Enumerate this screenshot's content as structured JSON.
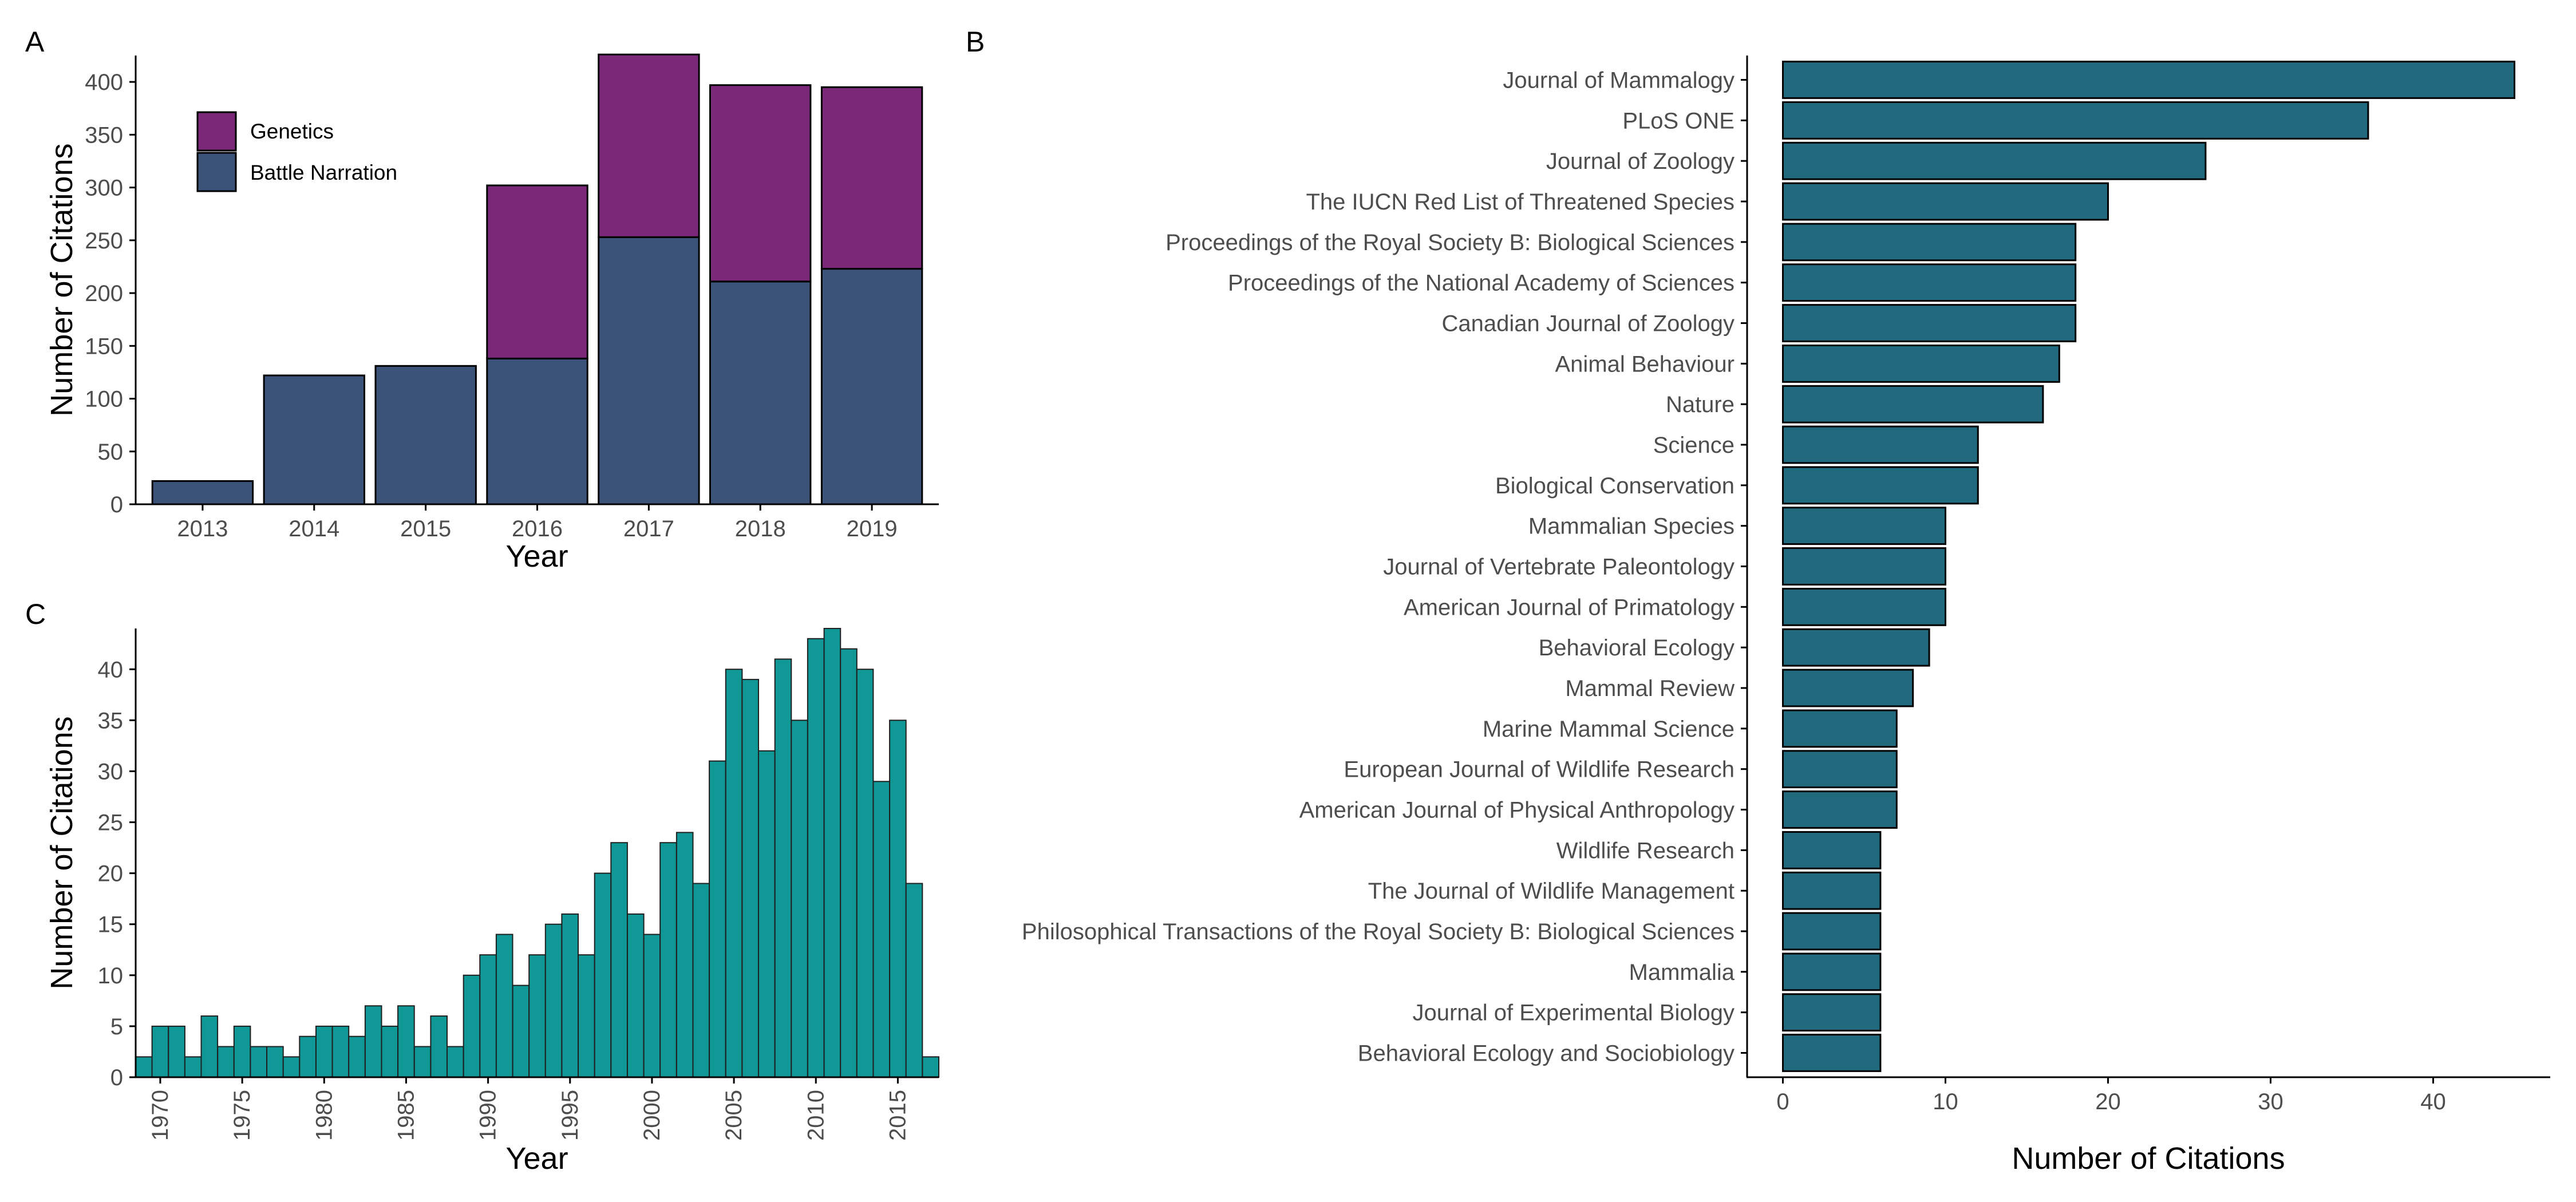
{
  "panels": {
    "a": "A",
    "b": "B",
    "c": "C"
  },
  "colors": {
    "genetics": "#7a2878",
    "battle_narration": "#3b5378",
    "histogram": "#0f9896",
    "journals": "#21697d",
    "outline": "#000000",
    "tick_text": "#4d4d4d"
  },
  "chart_data": [
    {
      "panel": "A",
      "type": "bar",
      "stacked": true,
      "categories": [
        "2013",
        "2014",
        "2015",
        "2016",
        "2017",
        "2018",
        "2019"
      ],
      "series": [
        {
          "name": "Battle Narration",
          "values": [
            22,
            122,
            131,
            138,
            253,
            211,
            223
          ]
        },
        {
          "name": "Genetics",
          "values": [
            0,
            0,
            0,
            164,
            173,
            186,
            172
          ]
        }
      ],
      "xlabel": "Year",
      "ylabel": "Number of Citations",
      "ylim": [
        0,
        425
      ],
      "yticks": [
        0,
        50,
        100,
        150,
        200,
        250,
        300,
        350,
        400
      ],
      "legend": "top-left",
      "grid": false
    },
    {
      "panel": "C",
      "type": "bar",
      "subtype": "histogram",
      "x": [
        1969,
        1970,
        1971,
        1972,
        1973,
        1974,
        1975,
        1976,
        1977,
        1978,
        1979,
        1980,
        1981,
        1982,
        1983,
        1984,
        1985,
        1986,
        1987,
        1988,
        1989,
        1990,
        1991,
        1992,
        1993,
        1994,
        1995,
        1996,
        1997,
        1998,
        1999,
        2000,
        2001,
        2002,
        2003,
        2004,
        2005,
        2006,
        2007,
        2008,
        2009,
        2010,
        2011,
        2012,
        2013,
        2014,
        2015,
        2016,
        2017,
        2018
      ],
      "values": [
        2,
        5,
        5,
        2,
        6,
        3,
        5,
        3,
        3,
        2,
        4,
        5,
        5,
        4,
        7,
        5,
        7,
        3,
        6,
        3,
        10,
        12,
        14,
        9,
        12,
        15,
        16,
        12,
        20,
        23,
        16,
        14,
        23,
        24,
        19,
        31,
        40,
        39,
        32,
        41,
        35,
        43,
        44,
        42,
        40,
        29,
        35,
        19,
        2,
        0
      ],
      "xlabel": "Year",
      "ylabel": "Number of Citations",
      "xticks": [
        "1970",
        "1975",
        "1980",
        "1985",
        "1990",
        "1995",
        "2000",
        "2005",
        "2010",
        "2015"
      ],
      "xlim": [
        1968.5,
        2017.5
      ],
      "ylim": [
        0,
        44
      ],
      "yticks": [
        0,
        5,
        10,
        15,
        20,
        25,
        30,
        35,
        40
      ],
      "grid": false
    },
    {
      "panel": "B",
      "type": "bar",
      "orientation": "horizontal",
      "categories": [
        "Journal of Mammalogy",
        "PLoS ONE",
        "Journal of Zoology",
        "The IUCN Red List of Threatened Species",
        "Proceedings of the Royal Society B: Biological Sciences",
        "Proceedings of the National Academy of Sciences",
        "Canadian Journal of Zoology",
        "Animal Behaviour",
        "Nature",
        "Science",
        "Biological Conservation",
        "Mammalian Species",
        "Journal of Vertebrate Paleontology",
        "American Journal of Primatology",
        "Behavioral Ecology",
        "Mammal Review",
        "Marine Mammal Science",
        "European Journal of Wildlife Research",
        "American Journal of Physical Anthropology",
        "Wildlife Research",
        "The Journal of Wildlife Management",
        "Philosophical Transactions of the Royal Society B: Biological Sciences",
        "Mammalia",
        "Journal of Experimental Biology",
        "Behavioral Ecology and Sociobiology"
      ],
      "values": [
        45,
        36,
        26,
        20,
        18,
        18,
        18,
        17,
        16,
        12,
        12,
        10,
        10,
        10,
        9,
        8,
        7,
        7,
        7,
        6,
        6,
        6,
        6,
        6,
        6
      ],
      "xlabel": "Number of Citations",
      "ylabel": "",
      "xlim": [
        -2.2,
        47.2
      ],
      "xticks": [
        0,
        10,
        20,
        30,
        40
      ],
      "grid": false
    }
  ]
}
